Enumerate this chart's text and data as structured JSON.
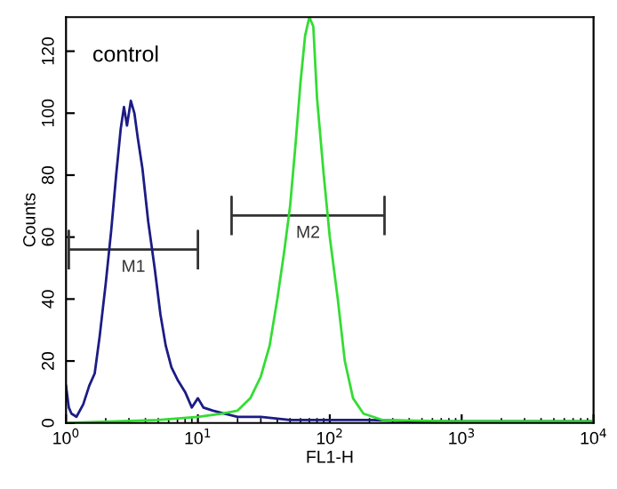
{
  "chart_data": {
    "type": "line",
    "xlabel": "FL1-H",
    "ylabel": "Counts",
    "log": "x",
    "grid": false,
    "legend": false,
    "marker": "none",
    "line_style": "solid",
    "xlim": [
      1,
      10000
    ],
    "ylim": [
      0,
      131
    ],
    "xticks": [
      {
        "value": 1,
        "label": "10$^{0}$"
      },
      {
        "value": 10,
        "label": "10$^{1}$"
      },
      {
        "value": 100,
        "label": "10$^{2}$"
      },
      {
        "value": 1000,
        "label": "10$^{3}$"
      },
      {
        "value": 10000,
        "label": "10$^{4}$"
      }
    ],
    "yticks": [
      0,
      20,
      40,
      60,
      80,
      100,
      120
    ],
    "annotations": [
      "control"
    ],
    "series": [
      {
        "name": "M1",
        "color": "#333333",
        "x": [
          1.05,
          1.05,
          1.05,
          10,
          10,
          10
        ],
        "values": [
          50,
          62,
          56,
          56,
          62,
          50
        ]
      },
      {
        "name": "M2",
        "color": "#333333",
        "x": [
          18,
          18,
          18,
          260,
          260,
          260
        ],
        "values": [
          61,
          73,
          67,
          67,
          73,
          61
        ]
      },
      {
        "color": "#1c1c85",
        "x": [
          1.0,
          1.05,
          1.1,
          1.2,
          1.35,
          1.5,
          1.65,
          1.8,
          2.0,
          2.2,
          2.4,
          2.6,
          2.75,
          2.9,
          3.1,
          3.3,
          3.5,
          3.8,
          4.2,
          4.7,
          5.2,
          5.7,
          6.3,
          7,
          8,
          9,
          10,
          11,
          13,
          16,
          20,
          30,
          50,
          100,
          200,
          500,
          1000,
          10000
        ],
        "values": [
          12,
          5,
          3,
          2,
          6,
          12,
          16,
          28,
          45,
          62,
          80,
          95,
          102,
          96,
          104,
          100,
          92,
          82,
          65,
          50,
          35,
          25,
          18,
          14,
          10,
          5,
          8,
          5,
          4,
          3,
          2,
          2,
          1,
          1,
          1,
          0.5,
          0.5,
          0.5
        ]
      },
      {
        "color": "#33dd33",
        "x": [
          1,
          5,
          10,
          15,
          20,
          25,
          30,
          35,
          40,
          45,
          50,
          55,
          60,
          65,
          70,
          75,
          80,
          90,
          100,
          115,
          130,
          150,
          180,
          250,
          1000,
          10000
        ],
        "values": [
          0,
          1,
          2,
          3,
          4,
          8,
          15,
          25,
          40,
          55,
          70,
          90,
          110,
          125,
          131,
          128,
          105,
          80,
          60,
          40,
          20,
          8,
          3,
          1,
          0.5,
          0.5
        ]
      }
    ]
  }
}
